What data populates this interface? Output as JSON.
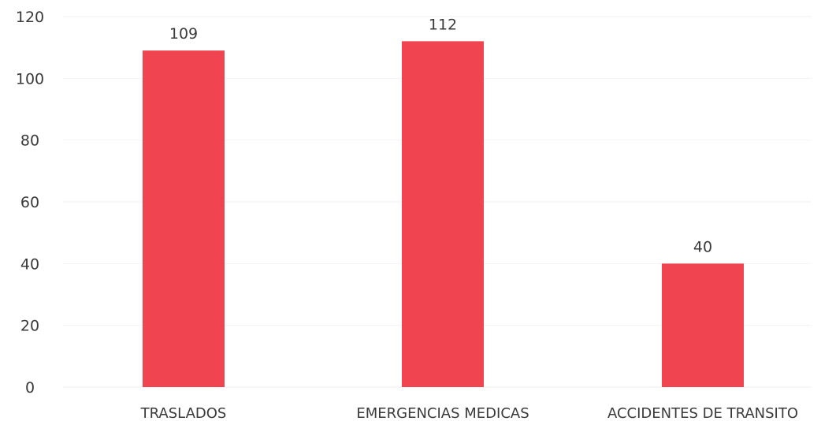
{
  "chart_data": {
    "type": "bar",
    "categories": [
      "TRASLADOS",
      "EMERGENCIAS MEDICAS",
      "ACCIDENTES DE TRANSITO"
    ],
    "values": [
      109,
      112,
      40
    ],
    "data_labels": [
      "109",
      "112",
      "40"
    ],
    "title": "",
    "xlabel": "",
    "ylabel": "",
    "ylim": [
      0,
      120
    ],
    "y_ticks": [
      "0",
      "20",
      "40",
      "60",
      "80",
      "100",
      "120"
    ],
    "grid": true,
    "legend": "none",
    "bar_color": "#f04450"
  }
}
